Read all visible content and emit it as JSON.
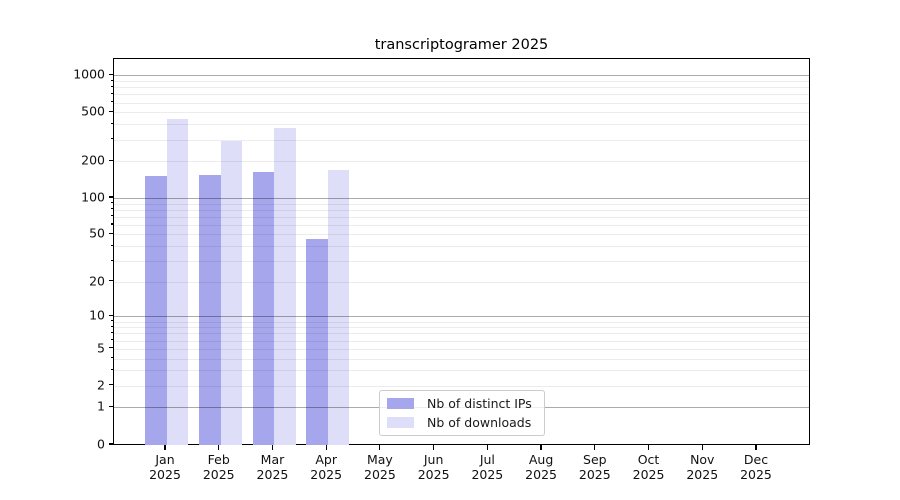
{
  "title": "transcriptogramer 2025",
  "chart_data": {
    "type": "bar",
    "title": "transcriptogramer 2025",
    "x_categories": [
      "Jan",
      "Feb",
      "Mar",
      "Apr",
      "May",
      "Jun",
      "Jul",
      "Aug",
      "Sep",
      "Oct",
      "Nov",
      "Dec"
    ],
    "x_year_label": "2025",
    "series": [
      {
        "name": "Nb of distinct IPs",
        "color": "#a6a6ed",
        "values": [
          151,
          153,
          164,
          46,
          null,
          null,
          null,
          null,
          null,
          null,
          null,
          null
        ]
      },
      {
        "name": "Nb of downloads",
        "color": "#dedef8",
        "values": [
          440,
          295,
          375,
          170,
          null,
          null,
          null,
          null,
          null,
          null,
          null,
          null
        ]
      }
    ],
    "y_scale": "log10(1+v)",
    "y_tick_labels": [
      1000,
      500,
      200,
      100,
      50,
      20,
      10,
      5,
      2,
      1,
      0
    ],
    "y_major_gridlines": [
      1,
      10,
      100,
      1000
    ],
    "ylim": [
      0,
      1310
    ],
    "grid": "horizontal",
    "legend_position": "lower center-left"
  }
}
